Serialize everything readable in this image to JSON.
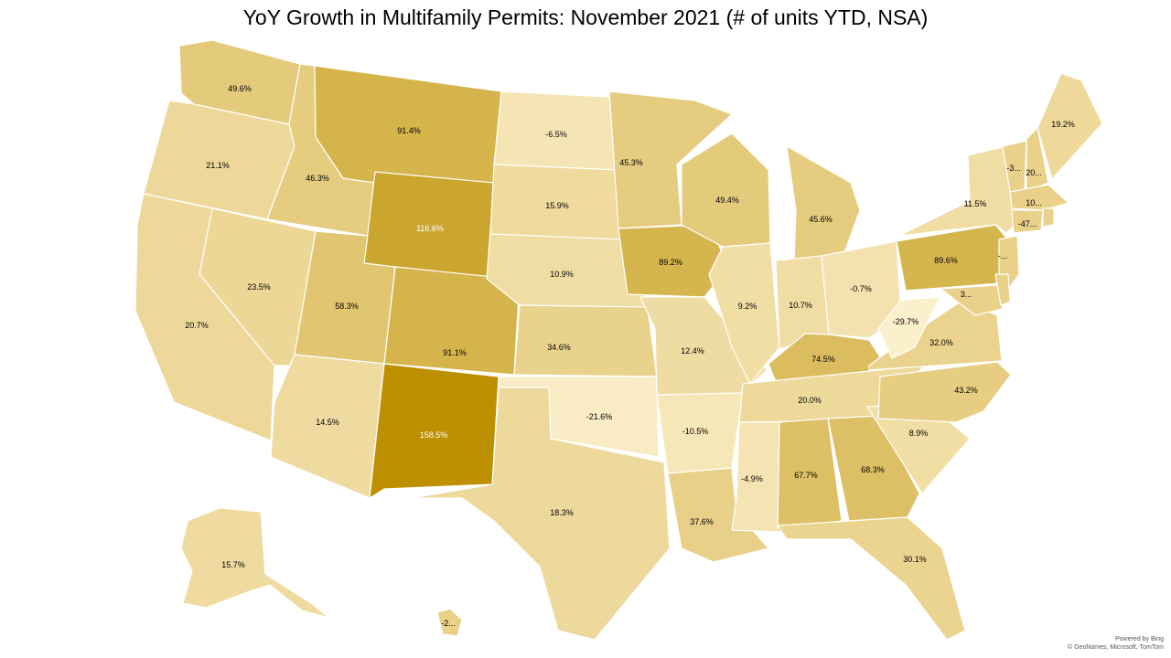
{
  "title": "YoY Growth in Multifamily Permits: November 2021 (# of units YTD, NSA)",
  "attribution": {
    "line1": "Powered by Bing",
    "line2": "© GeoNames, Microsoft, TomTom"
  },
  "colors": {
    "light": "#FBF0CC",
    "mid": "#E9D18A",
    "dark": "#BC9000",
    "border": "#ffffff",
    "label": "#000000",
    "label_on_dark": "#ffffff"
  },
  "states": [
    {
      "id": "WA",
      "label": "49.6%",
      "value": 49.6
    },
    {
      "id": "OR",
      "label": "21.1%",
      "value": 21.1
    },
    {
      "id": "CA",
      "label": "20.7%",
      "value": 20.7
    },
    {
      "id": "ID",
      "label": "46.3%",
      "value": 46.3
    },
    {
      "id": "NV",
      "label": "23.5%",
      "value": 23.5
    },
    {
      "id": "MT",
      "label": "91.4%",
      "value": 91.4
    },
    {
      "id": "WY",
      "label": "116.6%",
      "value": 116.6
    },
    {
      "id": "UT",
      "label": "58.3%",
      "value": 58.3
    },
    {
      "id": "AZ",
      "label": "14.5%",
      "value": 14.5
    },
    {
      "id": "CO",
      "label": "91.1%",
      "value": 91.1
    },
    {
      "id": "NM",
      "label": "158.5%",
      "value": 158.5
    },
    {
      "id": "ND",
      "label": "-6.5%",
      "value": -6.5
    },
    {
      "id": "SD",
      "label": "15.9%",
      "value": 15.9
    },
    {
      "id": "NE",
      "label": "10.9%",
      "value": 10.9
    },
    {
      "id": "KS",
      "label": "34.6%",
      "value": 34.6
    },
    {
      "id": "OK",
      "label": "-21.6%",
      "value": -21.6
    },
    {
      "id": "TX",
      "label": "18.3%",
      "value": 18.3
    },
    {
      "id": "MN",
      "label": "45.3%",
      "value": 45.3
    },
    {
      "id": "IA",
      "label": "89.2%",
      "value": 89.2
    },
    {
      "id": "MO",
      "label": "12.4%",
      "value": 12.4
    },
    {
      "id": "AR",
      "label": "-10.5%",
      "value": -10.5
    },
    {
      "id": "LA",
      "label": "37.6%",
      "value": 37.6
    },
    {
      "id": "WI",
      "label": "49.4%",
      "value": 49.4
    },
    {
      "id": "IL",
      "label": "9.2%",
      "value": 9.2
    },
    {
      "id": "MI",
      "label": "45.6%",
      "value": 45.6
    },
    {
      "id": "IN",
      "label": "10.7%",
      "value": 10.7
    },
    {
      "id": "OH",
      "label": "-0.7%",
      "value": -0.7
    },
    {
      "id": "KY",
      "label": "74.5%",
      "value": 74.5
    },
    {
      "id": "TN",
      "label": "20.0%",
      "value": 20.0
    },
    {
      "id": "MS",
      "label": "-4.9%",
      "value": -4.9
    },
    {
      "id": "AL",
      "label": "67.7%",
      "value": 67.7
    },
    {
      "id": "GA",
      "label": "68.3%",
      "value": 68.3
    },
    {
      "id": "FL",
      "label": "30.1%",
      "value": 30.1
    },
    {
      "id": "SC",
      "label": "8.9%",
      "value": 8.9
    },
    {
      "id": "NC",
      "label": "43.2%",
      "value": 43.2
    },
    {
      "id": "VA",
      "label": "32.0%",
      "value": 32.0
    },
    {
      "id": "WV",
      "label": "-29.7%",
      "value": -29.7
    },
    {
      "id": "PA",
      "label": "89.6%",
      "value": 89.6
    },
    {
      "id": "NY",
      "label": "11.5%",
      "value": 11.5
    },
    {
      "id": "VT",
      "label": "-3...",
      "value": null
    },
    {
      "id": "NH",
      "label": "20...",
      "value": null
    },
    {
      "id": "ME",
      "label": "19.2%",
      "value": 19.2
    },
    {
      "id": "MA",
      "label": "10...",
      "value": null
    },
    {
      "id": "CT",
      "label": "-47...",
      "value": null
    },
    {
      "id": "NJ",
      "label": "-...",
      "value": null
    },
    {
      "id": "MD",
      "label": "3...",
      "value": null
    },
    {
      "id": "DE",
      "label": "",
      "value": null
    },
    {
      "id": "RI",
      "label": "",
      "value": null
    },
    {
      "id": "AK",
      "label": "15.7%",
      "value": 15.7
    },
    {
      "id": "HI",
      "label": "-2...",
      "value": null
    }
  ]
}
